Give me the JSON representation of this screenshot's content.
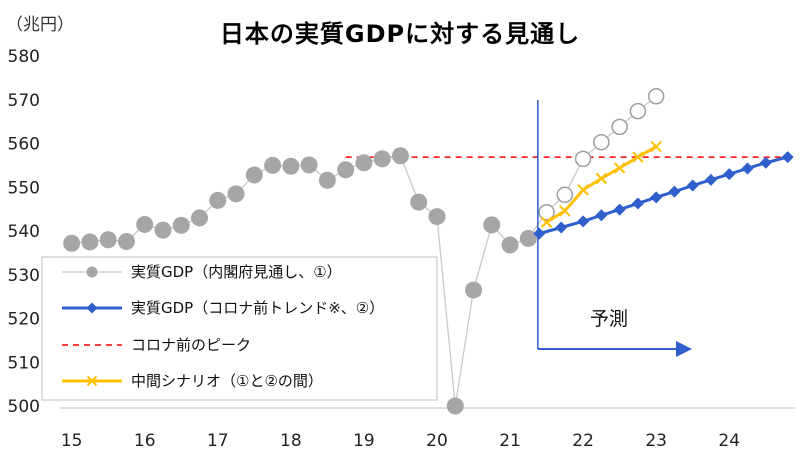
{
  "unit_label": "（兆円）",
  "chart_data": {
    "type": "line",
    "title": "日本の実質GDPに対する見通し",
    "ylim": [
      500,
      580
    ],
    "xlim": [
      14.95,
      24.9
    ],
    "y_ticks": [
      500,
      510,
      520,
      530,
      540,
      550,
      560,
      570,
      580
    ],
    "x_ticks": [
      15,
      16,
      17,
      18,
      19,
      20,
      21,
      22,
      23,
      24
    ],
    "grid": false,
    "legend_position": "bottom-left",
    "series": [
      {
        "name": "実質GDP（内閣府見通し、①）",
        "color": "#a6a6a6",
        "marker": "circle",
        "x": [
          15.0,
          15.25,
          15.5,
          15.75,
          16.0,
          16.25,
          16.5,
          16.75,
          17.0,
          17.25,
          17.5,
          17.75,
          18.0,
          18.25,
          18.5,
          18.75,
          19.0,
          19.25,
          19.5,
          19.75,
          20.0,
          20.25,
          20.5,
          20.75,
          21.0,
          21.25
        ],
        "y": [
          537.2,
          537.5,
          538.0,
          537.6,
          541.5,
          540.2,
          541.3,
          543.0,
          547.0,
          548.5,
          552.8,
          555.0,
          554.8,
          555.1,
          551.6,
          554.0,
          555.6,
          556.5,
          557.2,
          546.6,
          543.3,
          500.0,
          526.5,
          541.4,
          536.8,
          538.3
        ],
        "forecast_x": [
          21.5,
          21.75,
          22.0,
          22.25,
          22.5,
          22.75,
          23.0
        ],
        "forecast_y": [
          544.3,
          548.3,
          556.5,
          560.3,
          563.8,
          567.4,
          570.8
        ]
      },
      {
        "name": "実質GDP（コロナ前トレンド※、②）",
        "color": "#2e5fcc",
        "marker": "diamond",
        "x": [
          21.4,
          21.7,
          22.0,
          22.25,
          22.5,
          22.75,
          23.0,
          23.25,
          23.5,
          23.75,
          24.0,
          24.25,
          24.5,
          24.8
        ],
        "y": [
          539.4,
          540.8,
          542.2,
          543.6,
          544.9,
          546.3,
          547.7,
          549.0,
          550.4,
          551.7,
          553.0,
          554.3,
          555.6,
          556.9
        ]
      },
      {
        "name": "中間シナリオ（①と②の間）",
        "color": "#ffc000",
        "marker": "x",
        "x": [
          21.5,
          21.75,
          22.0,
          22.25,
          22.5,
          22.75,
          23.0
        ],
        "y": [
          542.0,
          544.6,
          549.4,
          552.0,
          554.4,
          556.9,
          559.3
        ]
      },
      {
        "name": "コロナ前のピーク",
        "color": "#ff0000",
        "style": "dashed",
        "y_value": 556.9,
        "x_range": [
          18.75,
          24.8
        ]
      }
    ],
    "annotation": {
      "label": "予測",
      "divider_x": 21.38
    }
  }
}
